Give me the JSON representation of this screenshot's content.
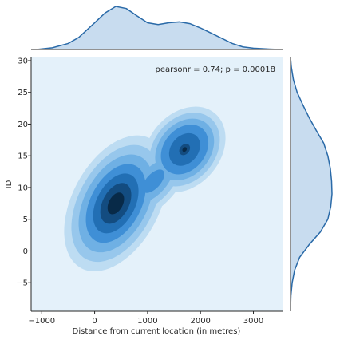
{
  "chart_data": {
    "type": "jointplot-kde",
    "title": "",
    "xlabel": "Distance from current location (in metres)",
    "ylabel": "ID",
    "xlim": [
      -1200,
      3550
    ],
    "ylim": [
      -9.5,
      30.5
    ],
    "xticks": [
      -1000,
      0,
      1000,
      2000,
      3000
    ],
    "yticks": [
      -5,
      0,
      5,
      10,
      15,
      20,
      25,
      30
    ],
    "xtick_labels": [
      "−1000",
      "0",
      "1000",
      "2000",
      "3000"
    ],
    "ytick_labels": [
      "−5",
      "0",
      "5",
      "10",
      "15",
      "20",
      "25",
      "30"
    ],
    "annotation": "pearsonr = 0.74; p = 0.00018",
    "grid": false,
    "kde_levels": 7,
    "kde_peaks": [
      {
        "x": 400,
        "y": 7.5,
        "relative_density": 1.0
      },
      {
        "x": 1700,
        "y": 16,
        "relative_density": 0.65
      }
    ],
    "marginal_x": {
      "x": [
        -1100,
        -800,
        -500,
        -300,
        0,
        200,
        400,
        600,
        800,
        1000,
        1200,
        1400,
        1600,
        1800,
        2000,
        2200,
        2400,
        2600,
        2800,
        3000,
        3300,
        3500
      ],
      "density": [
        0.0,
        0.04,
        0.14,
        0.28,
        0.62,
        0.85,
        1.0,
        0.95,
        0.78,
        0.62,
        0.58,
        0.62,
        0.64,
        0.6,
        0.5,
        0.38,
        0.26,
        0.14,
        0.06,
        0.03,
        0.01,
        0.0
      ]
    },
    "marginal_y": {
      "y": [
        -9,
        -7,
        -5,
        -3,
        -1,
        1,
        3,
        5,
        7,
        9,
        11,
        13,
        15,
        17,
        19,
        21,
        23,
        25,
        27,
        29,
        30.5
      ],
      "density": [
        0.0,
        0.01,
        0.04,
        0.1,
        0.22,
        0.45,
        0.72,
        0.9,
        0.97,
        1.0,
        0.99,
        0.96,
        0.9,
        0.8,
        0.62,
        0.45,
        0.3,
        0.16,
        0.07,
        0.02,
        0.0
      ]
    },
    "colors": {
      "background": "#e4f1fa",
      "levels": [
        "#bddcf2",
        "#97c7ec",
        "#6fb0e4",
        "#3f8fd6",
        "#226fb4",
        "#134c80",
        "#082a48"
      ],
      "marginal_line": "#2a6aa8",
      "marginal_fill": "#c8dcef",
      "axis": "#262626"
    }
  }
}
